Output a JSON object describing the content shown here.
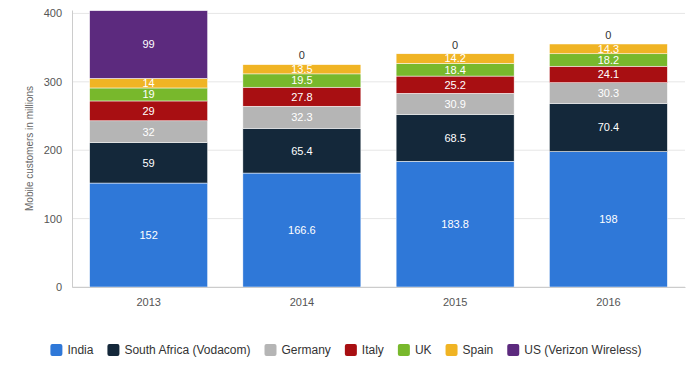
{
  "chart_data": {
    "type": "bar",
    "stacked": true,
    "data_labels": true,
    "grid": true,
    "legend": "bottom",
    "y_label": "Mobile customers in millions",
    "categories": [
      "2013",
      "2014",
      "2015",
      "2016"
    ],
    "series": [
      {
        "name": "India",
        "color": "#2f78d8",
        "values": [
          152,
          166.6,
          183.8,
          198
        ]
      },
      {
        "name": "South Africa (Vodacom)",
        "color": "#14283a",
        "values": [
          59,
          65.4,
          68.5,
          70.4
        ]
      },
      {
        "name": "Germany",
        "color": "#b5b5b5",
        "values": [
          32,
          32.3,
          30.9,
          30.3
        ]
      },
      {
        "name": "Italy",
        "color": "#a80f12",
        "values": [
          29,
          27.8,
          25.2,
          24.1
        ]
      },
      {
        "name": "UK",
        "color": "#78b82c",
        "values": [
          19,
          19.5,
          18.4,
          18.2
        ]
      },
      {
        "name": "Spain",
        "color": "#f0b424",
        "values": [
          14,
          13.5,
          14.2,
          14.3
        ]
      },
      {
        "name": "US (Verizon Wireless)",
        "color": "#5c2a7e",
        "values": [
          99,
          0,
          0,
          0
        ]
      }
    ],
    "ylim": [
      0,
      405
    ],
    "yticks": [
      0,
      100,
      200,
      300,
      400
    ]
  }
}
